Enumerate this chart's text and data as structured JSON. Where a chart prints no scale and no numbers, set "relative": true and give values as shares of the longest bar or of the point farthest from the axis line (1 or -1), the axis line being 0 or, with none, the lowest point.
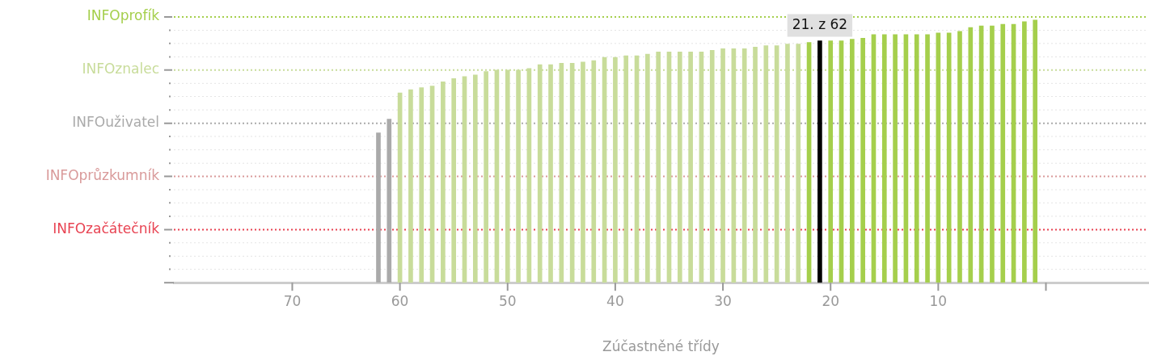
{
  "chart_data": {
    "type": "bar",
    "xlabel": "Zúčastněné třídy",
    "relative": true,
    "x": [
      62,
      61,
      60,
      59,
      58,
      57,
      56,
      55,
      54,
      53,
      52,
      51,
      50,
      49,
      48,
      47,
      46,
      45,
      44,
      43,
      42,
      41,
      40,
      39,
      38,
      37,
      36,
      35,
      34,
      33,
      32,
      31,
      30,
      29,
      28,
      27,
      26,
      25,
      24,
      23,
      22,
      21,
      20,
      19,
      18,
      17,
      16,
      15,
      14,
      13,
      12,
      11,
      10,
      9,
      8,
      7,
      6,
      5,
      4,
      3,
      2,
      1
    ],
    "values": [
      0.571,
      0.623,
      0.723,
      0.735,
      0.743,
      0.749,
      0.765,
      0.777,
      0.785,
      0.791,
      0.804,
      0.81,
      0.81,
      0.81,
      0.816,
      0.83,
      0.83,
      0.836,
      0.836,
      0.84,
      0.846,
      0.858,
      0.858,
      0.864,
      0.864,
      0.87,
      0.879,
      0.879,
      0.879,
      0.879,
      0.879,
      0.885,
      0.891,
      0.891,
      0.891,
      0.897,
      0.903,
      0.903,
      0.909,
      0.909,
      0.915,
      0.921,
      0.921,
      0.921,
      0.927,
      0.931,
      0.945,
      0.945,
      0.945,
      0.945,
      0.945,
      0.945,
      0.951,
      0.951,
      0.957,
      0.972,
      0.978,
      0.978,
      0.984,
      0.984,
      0.994,
      1
    ],
    "colors": [
      "#aaaaaa",
      "#aaaaaa",
      "#c8dc9a",
      "#c8dc9a",
      "#c8dc9a",
      "#c8dc9a",
      "#c8dc9a",
      "#c8dc9a",
      "#c8dc9a",
      "#c8dc9a",
      "#c8dc9a",
      "#c8dc9a",
      "#c8dc9a",
      "#c8dc9a",
      "#c8dc9a",
      "#c8dc9a",
      "#c8dc9a",
      "#c8dc9a",
      "#c8dc9a",
      "#c8dc9a",
      "#c8dc9a",
      "#c8dc9a",
      "#c8dc9a",
      "#c8dc9a",
      "#c8dc9a",
      "#c8dc9a",
      "#c8dc9a",
      "#c8dc9a",
      "#c8dc9a",
      "#c8dc9a",
      "#c8dc9a",
      "#c8dc9a",
      "#c8dc9a",
      "#c8dc9a",
      "#c8dc9a",
      "#c8dc9a",
      "#c8dc9a",
      "#c8dc9a",
      "#c8dc9a",
      "#c8dc9a",
      "#a5cf4c",
      "#000000",
      "#a5cf4c",
      "#a5cf4c",
      "#a5cf4c",
      "#a5cf4c",
      "#a5cf4c",
      "#a5cf4c",
      "#a5cf4c",
      "#a5cf4c",
      "#a5cf4c",
      "#a5cf4c",
      "#a5cf4c",
      "#a5cf4c",
      "#a5cf4c",
      "#a5cf4c",
      "#a5cf4c",
      "#a5cf4c",
      "#a5cf4c",
      "#a5cf4c",
      "#a5cf4c",
      "#a5cf4c"
    ],
    "xlim": [
      81,
      -9.5
    ],
    "xticks": [
      70,
      60,
      50,
      40,
      30,
      20,
      10,
      {
        "value": 0,
        "label": null
      }
    ],
    "ref_lines": [
      {
        "axis": "y",
        "value": 0.051,
        "line_style": "dotted"
      },
      {
        "axis": "y",
        "value": 0.101,
        "line_style": "dotted"
      },
      {
        "axis": "y",
        "value": 0.152,
        "line_style": "dotted"
      },
      {
        "axis": "y",
        "value": 0.202,
        "label": "INFOzačátečník",
        "color": "#e84352",
        "line_style": "dotted"
      },
      {
        "axis": "y",
        "value": 0.253,
        "line_style": "dotted"
      },
      {
        "axis": "y",
        "value": 0.304,
        "line_style": "dotted"
      },
      {
        "axis": "y",
        "value": 0.354,
        "line_style": "dotted"
      },
      {
        "axis": "y",
        "value": 0.405,
        "label": "INFOprůzkumník",
        "color": "#d99a9a",
        "line_style": "dotted"
      },
      {
        "axis": "y",
        "value": 0.455,
        "line_style": "dotted"
      },
      {
        "axis": "y",
        "value": 0.506,
        "line_style": "dotted"
      },
      {
        "axis": "y",
        "value": 0.557,
        "line_style": "dotted"
      },
      {
        "axis": "y",
        "value": 0.607,
        "label": "INFOuživatel",
        "color": "#aaaaaa",
        "line_style": "dotted"
      },
      {
        "axis": "y",
        "value": 0.658,
        "line_style": "dotted"
      },
      {
        "axis": "y",
        "value": 0.709,
        "line_style": "dotted"
      },
      {
        "axis": "y",
        "value": 0.759,
        "line_style": "dotted"
      },
      {
        "axis": "y",
        "value": 0.81,
        "label": "INFOznalec",
        "color": "#c8dc9a",
        "line_style": "dotted"
      },
      {
        "axis": "y",
        "value": 0.86,
        "line_style": "dotted"
      },
      {
        "axis": "y",
        "value": 0.911,
        "line_style": "dotted"
      },
      {
        "axis": "y",
        "value": 0.961,
        "line_style": "dotted"
      },
      {
        "axis": "y",
        "value": 1.012,
        "label": "INFOprofík",
        "color": "#a5cf4c",
        "line_style": "dotted"
      }
    ],
    "annotations": [
      {
        "text": "21. z 62",
        "x": 21,
        "y": 0.921
      }
    ]
  }
}
